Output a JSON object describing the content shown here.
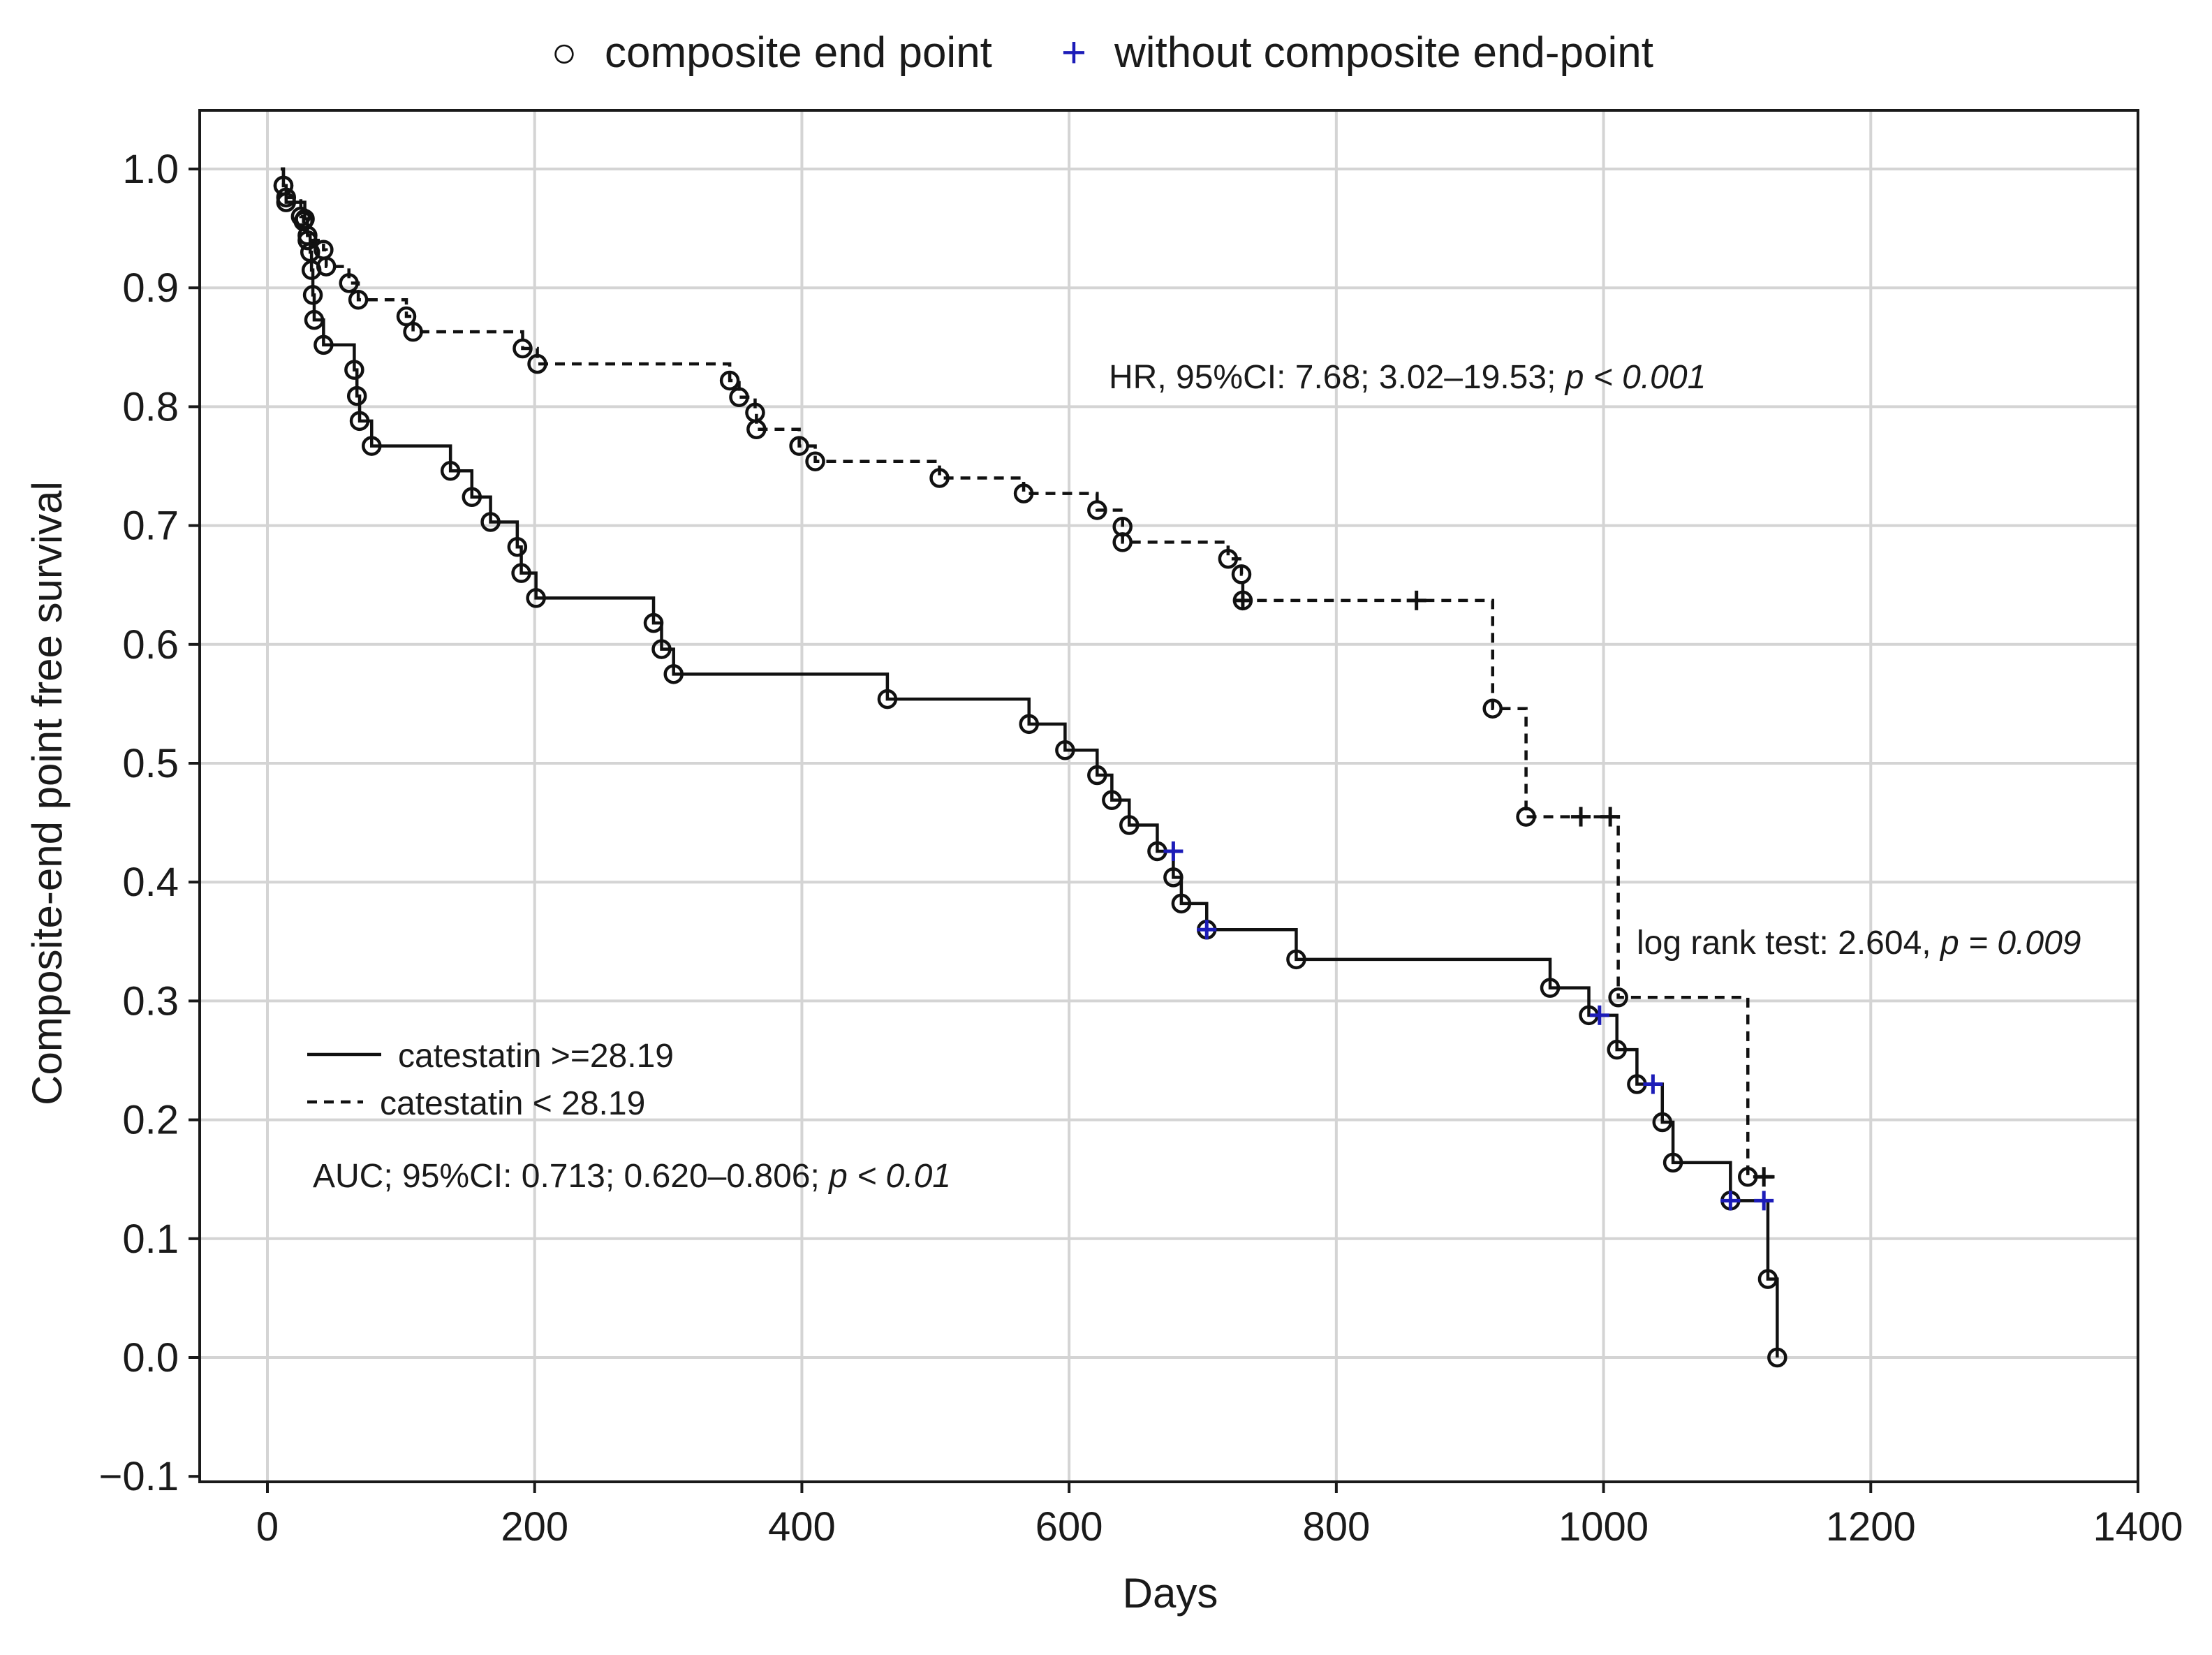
{
  "chart_data": {
    "type": "line",
    "subtype": "kaplan-meier",
    "xlabel": "Days",
    "ylabel": "Composite-end point free survival",
    "xlim": [
      -50,
      1400
    ],
    "ylim": [
      -0.1,
      1.05
    ],
    "xticks": [
      0,
      200,
      400,
      600,
      800,
      1000,
      1200,
      1400
    ],
    "xtick_labels": [
      "0",
      "200",
      "400",
      "600",
      "800",
      "1000",
      "1200",
      "1400"
    ],
    "yticks": [
      -0.1,
      0.0,
      0.1,
      0.2,
      0.3,
      0.4,
      0.5,
      0.6,
      0.7,
      0.8,
      0.9,
      1.0
    ],
    "ytick_labels": [
      "−0.1",
      "0.0",
      "0.1",
      "0.2",
      "0.3",
      "0.4",
      "0.5",
      "0.6",
      "0.7",
      "0.8",
      "0.9",
      "1.0"
    ],
    "grid": true,
    "marker_legend": [
      {
        "symbol": "○",
        "label": "composite end point",
        "color": "#111111"
      },
      {
        "symbol": "+",
        "label": "without composite end-point",
        "color": "#1c1cb8"
      }
    ],
    "line_legend": [
      {
        "style": "solid",
        "label": "catestatin >=28.19"
      },
      {
        "style": "dashed",
        "label": "catestatin < 28.19"
      }
    ],
    "series": [
      {
        "name": "catestatin >=28.19",
        "line_style": "solid",
        "censor_color": "#1c1cb8",
        "steps": [
          [
            10,
            1.0
          ],
          [
            12,
            0.986
          ],
          [
            14,
            0.972
          ],
          [
            28,
            0.958
          ],
          [
            30,
            0.944
          ],
          [
            32,
            0.93
          ],
          [
            33,
            0.915
          ],
          [
            34,
            0.894
          ],
          [
            35,
            0.873
          ],
          [
            42,
            0.852
          ],
          [
            65,
            0.831
          ],
          [
            67,
            0.809
          ],
          [
            69,
            0.788
          ],
          [
            78,
            0.767
          ],
          [
            137,
            0.746
          ],
          [
            153,
            0.724
          ],
          [
            167,
            0.703
          ],
          [
            187,
            0.682
          ],
          [
            190,
            0.66
          ],
          [
            201,
            0.639
          ],
          [
            289,
            0.618
          ],
          [
            295,
            0.596
          ],
          [
            304,
            0.575
          ],
          [
            464,
            0.554
          ],
          [
            570,
            0.533
          ],
          [
            597,
            0.511
          ],
          [
            621,
            0.49
          ],
          [
            632,
            0.469
          ],
          [
            645,
            0.448
          ],
          [
            666,
            0.426
          ],
          [
            678,
            0.404
          ],
          [
            684,
            0.382
          ],
          [
            703,
            0.36
          ],
          [
            770,
            0.335
          ],
          [
            960,
            0.311
          ],
          [
            989,
            0.288
          ],
          [
            1010,
            0.259
          ],
          [
            1025,
            0.23
          ],
          [
            1044,
            0.198
          ],
          [
            1052,
            0.164
          ],
          [
            1095,
            0.132
          ],
          [
            1123,
            0.066
          ],
          [
            1130,
            0.0
          ]
        ],
        "events": [
          [
            12,
            0.986
          ],
          [
            14,
            0.972
          ],
          [
            28,
            0.958
          ],
          [
            30,
            0.944
          ],
          [
            32,
            0.93
          ],
          [
            33,
            0.915
          ],
          [
            34,
            0.894
          ],
          [
            35,
            0.873
          ],
          [
            42,
            0.852
          ],
          [
            65,
            0.831
          ],
          [
            67,
            0.809
          ],
          [
            69,
            0.788
          ],
          [
            78,
            0.767
          ],
          [
            137,
            0.746
          ],
          [
            153,
            0.724
          ],
          [
            167,
            0.703
          ],
          [
            187,
            0.682
          ],
          [
            190,
            0.66
          ],
          [
            201,
            0.639
          ],
          [
            289,
            0.618
          ],
          [
            295,
            0.596
          ],
          [
            304,
            0.575
          ],
          [
            464,
            0.554
          ],
          [
            570,
            0.533
          ],
          [
            597,
            0.511
          ],
          [
            621,
            0.49
          ],
          [
            632,
            0.469
          ],
          [
            645,
            0.448
          ],
          [
            666,
            0.426
          ],
          [
            678,
            0.404
          ],
          [
            684,
            0.382
          ],
          [
            703,
            0.36
          ],
          [
            770,
            0.335
          ],
          [
            960,
            0.311
          ],
          [
            989,
            0.288
          ],
          [
            1010,
            0.259
          ],
          [
            1025,
            0.23
          ],
          [
            1044,
            0.198
          ],
          [
            1052,
            0.164
          ],
          [
            1095,
            0.132
          ],
          [
            1123,
            0.066
          ],
          [
            1130,
            0.0
          ]
        ],
        "censored": [
          [
            678,
            0.426
          ],
          [
            703,
            0.36
          ],
          [
            997,
            0.288
          ],
          [
            1037,
            0.23
          ],
          [
            1095,
            0.132
          ],
          [
            1120,
            0.132
          ]
        ]
      },
      {
        "name": "catestatin < 28.19",
        "line_style": "dashed",
        "censor_color": "#111111",
        "steps": [
          [
            10,
            1.0
          ],
          [
            12,
            0.986
          ],
          [
            14,
            0.976
          ],
          [
            25,
            0.96
          ],
          [
            27,
            0.956
          ],
          [
            30,
            0.94
          ],
          [
            42,
            0.932
          ],
          [
            44,
            0.918
          ],
          [
            61,
            0.904
          ],
          [
            68,
            0.89
          ],
          [
            104,
            0.876
          ],
          [
            109,
            0.863
          ],
          [
            191,
            0.849
          ],
          [
            202,
            0.836
          ],
          [
            346,
            0.822
          ],
          [
            353,
            0.808
          ],
          [
            365,
            0.795
          ],
          [
            366,
            0.781
          ],
          [
            398,
            0.767
          ],
          [
            410,
            0.754
          ],
          [
            503,
            0.74
          ],
          [
            566,
            0.727
          ],
          [
            621,
            0.713
          ],
          [
            640,
            0.699
          ],
          [
            640,
            0.686
          ],
          [
            719,
            0.672
          ],
          [
            729,
            0.659
          ],
          [
            730,
            0.637
          ],
          [
            917,
            0.546
          ],
          [
            942,
            0.455
          ],
          [
            1011,
            0.303
          ],
          [
            1108,
            0.152
          ]
        ],
        "events": [
          [
            12,
            0.986
          ],
          [
            14,
            0.976
          ],
          [
            25,
            0.96
          ],
          [
            27,
            0.956
          ],
          [
            30,
            0.94
          ],
          [
            42,
            0.932
          ],
          [
            44,
            0.918
          ],
          [
            61,
            0.904
          ],
          [
            68,
            0.89
          ],
          [
            104,
            0.876
          ],
          [
            109,
            0.863
          ],
          [
            191,
            0.849
          ],
          [
            202,
            0.836
          ],
          [
            346,
            0.822
          ],
          [
            353,
            0.808
          ],
          [
            365,
            0.795
          ],
          [
            366,
            0.781
          ],
          [
            398,
            0.767
          ],
          [
            410,
            0.754
          ],
          [
            503,
            0.74
          ],
          [
            566,
            0.727
          ],
          [
            621,
            0.713
          ],
          [
            640,
            0.699
          ],
          [
            640,
            0.686
          ],
          [
            719,
            0.672
          ],
          [
            729,
            0.659
          ],
          [
            730,
            0.637
          ],
          [
            917,
            0.546
          ],
          [
            942,
            0.455
          ],
          [
            1011,
            0.303
          ],
          [
            1108,
            0.152
          ]
        ],
        "censored": [
          [
            730,
            0.637
          ],
          [
            860,
            0.637
          ],
          [
            983,
            0.455
          ],
          [
            1005,
            0.455
          ],
          [
            1120,
            0.152
          ]
        ],
        "end_x": 1128
      }
    ],
    "annotations": {
      "hr": {
        "text": "HR, 95%CI: 7.68; 3.02–19.53; ",
        "italic": "p < 0.001"
      },
      "logrank": {
        "text": "log rank test: 2.604, ",
        "italic": "p = 0.009"
      },
      "auc": {
        "text": "AUC; 95%CI: 0.713; 0.620–0.806; ",
        "italic": "p < 0.01"
      }
    }
  }
}
